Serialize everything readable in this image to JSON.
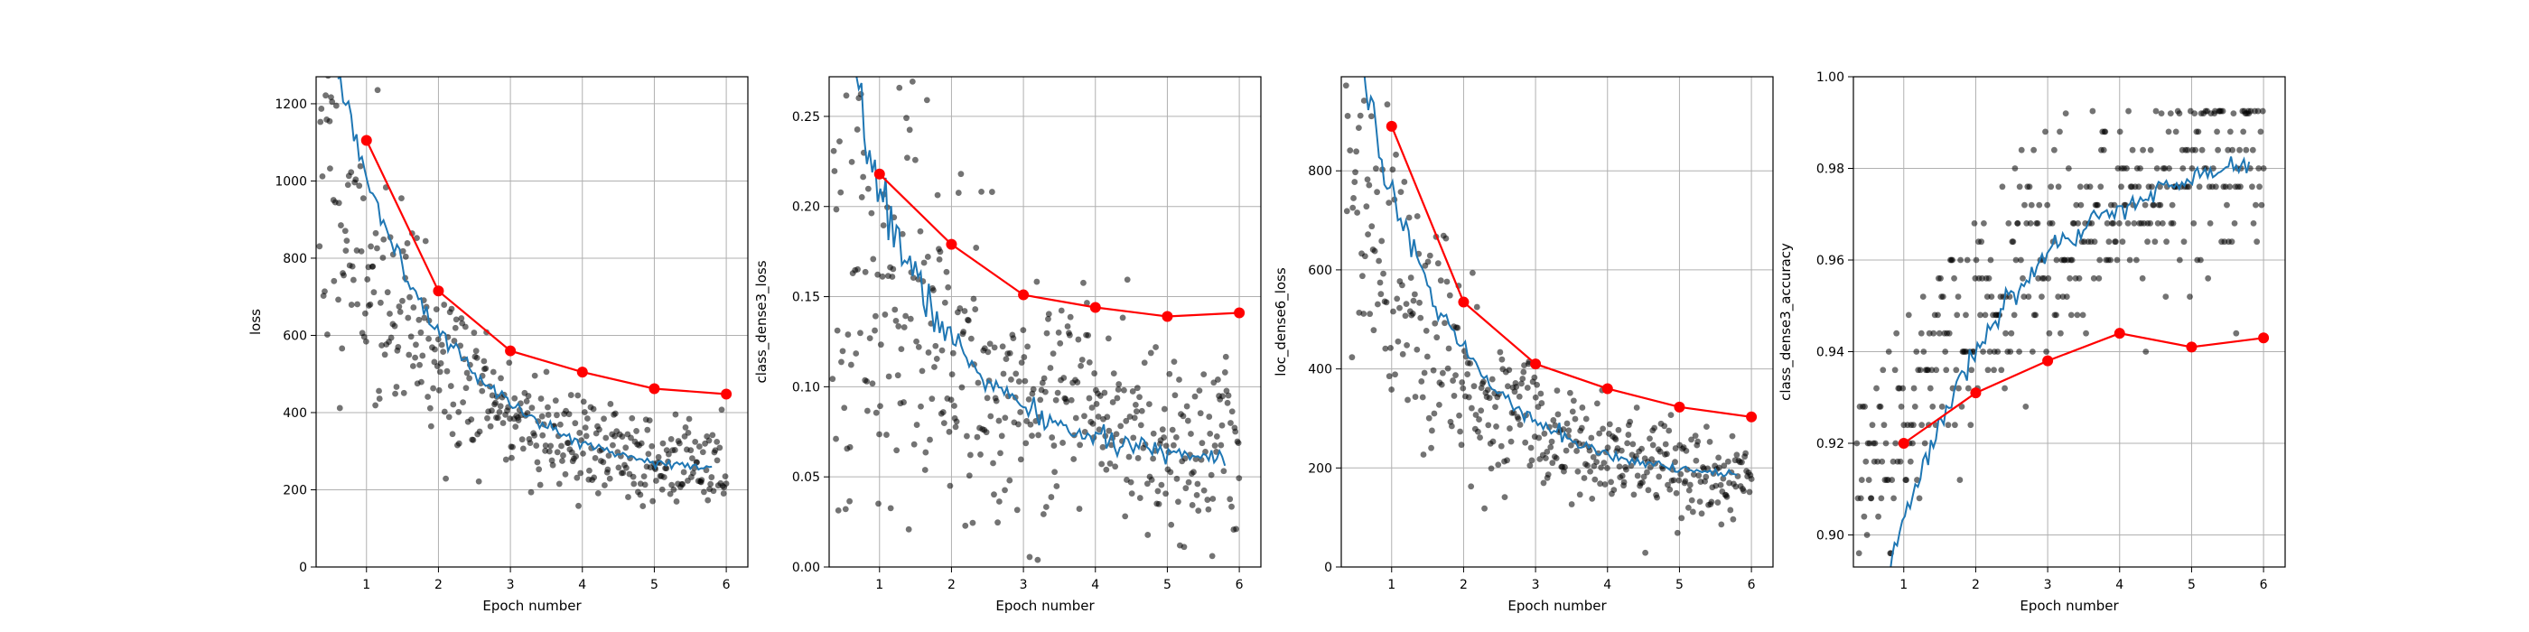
{
  "chart_data": [
    {
      "type": "scatter",
      "xlabel": "Epoch number",
      "ylabel": "loss",
      "xlim": [
        0.3,
        6.3
      ],
      "ylim": [
        0,
        1270
      ],
      "xticks": [
        1,
        2,
        3,
        4,
        5,
        6
      ],
      "yticks": [
        0,
        200,
        400,
        600,
        800,
        1000,
        1200
      ],
      "grid": true,
      "scatter": {
        "x_start": 0.35,
        "x_end": 6.0,
        "count": 420,
        "start": 1050,
        "end": 220,
        "decay": 0.55,
        "spread": 0.22,
        "seed": 11
      },
      "smooth": {
        "x_start": 0.6,
        "x_end": 5.8,
        "count": 140,
        "start": 1270,
        "end": 225,
        "decay": 0.6,
        "noise": 0.02,
        "seed": 5
      },
      "epoch_values": {
        "x": [
          1,
          2,
          3,
          4,
          5,
          6
        ],
        "y": [
          1105,
          715,
          560,
          505,
          462,
          448
        ]
      }
    },
    {
      "type": "scatter",
      "xlabel": "Epoch number",
      "ylabel": "class_dense3_loss",
      "xlim": [
        0.3,
        6.3
      ],
      "ylim": [
        0,
        0.272
      ],
      "xticks": [
        1,
        2,
        3,
        4,
        5,
        6
      ],
      "yticks": [
        0.0,
        0.05,
        0.1,
        0.15,
        0.2,
        0.25
      ],
      "tick_decimals": 2,
      "grid": true,
      "scatter": {
        "x_start": 0.35,
        "x_end": 6.0,
        "count": 420,
        "start": 0.205,
        "end": 0.06,
        "decay": 0.5,
        "spread": 0.38,
        "seed": 23
      },
      "smooth": {
        "x_start": 0.6,
        "x_end": 5.8,
        "count": 140,
        "start": 0.27,
        "end": 0.058,
        "decay": 0.7,
        "noise": 0.04,
        "seed": 7
      },
      "epoch_values": {
        "x": [
          1,
          2,
          3,
          4,
          5,
          6
        ],
        "y": [
          0.218,
          0.179,
          0.151,
          0.144,
          0.139,
          0.141
        ]
      }
    },
    {
      "type": "scatter",
      "xlabel": "Epoch number",
      "ylabel": "loc_dense6_loss",
      "xlim": [
        0.3,
        6.3
      ],
      "ylim": [
        0,
        990
      ],
      "xticks": [
        1,
        2,
        3,
        4,
        5,
        6
      ],
      "yticks": [
        0,
        200,
        400,
        600,
        800
      ],
      "grid": true,
      "scatter": {
        "x_start": 0.35,
        "x_end": 6.0,
        "count": 420,
        "start": 820,
        "end": 160,
        "decay": 0.6,
        "spread": 0.25,
        "seed": 31
      },
      "smooth": {
        "x_start": 0.6,
        "x_end": 5.8,
        "count": 140,
        "start": 990,
        "end": 175,
        "decay": 0.7,
        "noise": 0.025,
        "seed": 9
      },
      "epoch_values": {
        "x": [
          1,
          2,
          3,
          4,
          5,
          6
        ],
        "y": [
          890,
          535,
          410,
          360,
          323,
          303
        ]
      }
    },
    {
      "type": "scatter",
      "xlabel": "Epoch number",
      "ylabel": "class_dense3_accuracy",
      "xlim": [
        0.3,
        6.3
      ],
      "ylim": [
        0.893,
        1.0
      ],
      "xticks": [
        1,
        2,
        3,
        4,
        5,
        6
      ],
      "yticks": [
        0.9,
        0.92,
        0.94,
        0.96,
        0.98,
        1.0
      ],
      "tick_decimals": 2,
      "grid": true,
      "scatter": {
        "x_start": 0.35,
        "x_end": 6.0,
        "count": 420,
        "start": 0.905,
        "end": 0.985,
        "decay": 0.45,
        "spread": 0.012,
        "seed": 47,
        "additive": true,
        "quantize": 0.004
      },
      "smooth": {
        "x_start": 0.8,
        "x_end": 5.8,
        "count": 140,
        "start": 0.893,
        "end": 0.985,
        "decay": 0.5,
        "noise": 0.0015,
        "seed": 3,
        "additive": true
      },
      "epoch_values": {
        "x": [
          1,
          2,
          3,
          4,
          5,
          6
        ],
        "y": [
          0.92,
          0.931,
          0.938,
          0.944,
          0.941,
          0.943
        ]
      }
    }
  ]
}
